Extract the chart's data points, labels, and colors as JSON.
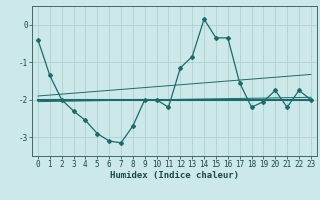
{
  "xlabel": "Humidex (Indice chaleur)",
  "ylabel": "",
  "bg_color": "#cce8e8",
  "grid_color": "#b0d0d0",
  "line_color": "#1a6b6b",
  "x_values": [
    0,
    1,
    2,
    3,
    4,
    5,
    6,
    7,
    8,
    9,
    10,
    11,
    12,
    13,
    14,
    15,
    16,
    17,
    18,
    19,
    20,
    21,
    22,
    23
  ],
  "y_main": [
    -0.4,
    -1.35,
    -2.0,
    -2.3,
    -2.55,
    -2.9,
    -3.1,
    -3.15,
    -2.7,
    -2.0,
    -2.0,
    -2.2,
    -1.15,
    -0.85,
    0.15,
    -0.35,
    -0.35,
    -1.55,
    -2.2,
    -2.05,
    -1.75,
    -2.2,
    -1.75,
    -2.0
  ],
  "y_reg1": [
    -1.9,
    -1.875,
    -1.85,
    -1.825,
    -1.8,
    -1.775,
    -1.75,
    -1.725,
    -1.7,
    -1.675,
    -1.65,
    -1.625,
    -1.6,
    -1.575,
    -1.55,
    -1.525,
    -1.5,
    -1.475,
    -1.45,
    -1.425,
    -1.4,
    -1.375,
    -1.35,
    -1.325
  ],
  "y_reg2": [
    -2.05,
    -2.045,
    -2.04,
    -2.035,
    -2.03,
    -2.025,
    -2.02,
    -2.015,
    -2.01,
    -2.005,
    -2.0,
    -1.995,
    -1.99,
    -1.985,
    -1.98,
    -1.975,
    -1.97,
    -1.965,
    -1.96,
    -1.955,
    -1.95,
    -1.945,
    -1.94,
    -1.935
  ],
  "y_flat": [
    -2.0,
    -2.0,
    -2.0,
    -2.0,
    -2.0,
    -2.0,
    -2.0,
    -2.0,
    -2.0,
    -2.0,
    -2.0,
    -2.0,
    -2.0,
    -2.0,
    -2.0,
    -2.0,
    -2.0,
    -2.0,
    -2.0,
    -2.0,
    -2.0,
    -2.0,
    -2.0,
    -2.0
  ],
  "ylim": [
    -3.5,
    0.5
  ],
  "xlim": [
    -0.5,
    23.5
  ],
  "yticks": [
    0,
    -1,
    -2,
    -3
  ],
  "xticks": [
    0,
    1,
    2,
    3,
    4,
    5,
    6,
    7,
    8,
    9,
    10,
    11,
    12,
    13,
    14,
    15,
    16,
    17,
    18,
    19,
    20,
    21,
    22,
    23
  ],
  "xlabel_fontsize": 6.5,
  "tick_fontsize": 5.5
}
